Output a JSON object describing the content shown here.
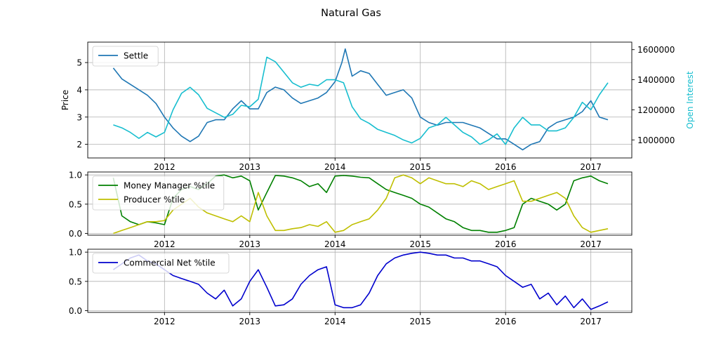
{
  "figure": {
    "title": "Natural Gas"
  },
  "chart_data": [
    {
      "type": "line",
      "panel": "top",
      "ylabel": "Price",
      "y2label": "Open Interest",
      "ylim": [
        1.5,
        5.75
      ],
      "y2lim": [
        880000,
        1650000
      ],
      "xlim": [
        2011.1,
        2017.48
      ],
      "yticks": [
        "2",
        "3",
        "4",
        "5"
      ],
      "y2ticks": [
        "1000000",
        "1200000",
        "1400000",
        "1600000"
      ],
      "xticks": [
        "2012",
        "2013",
        "2014",
        "2015",
        "2016",
        "2017"
      ],
      "grid": true,
      "legend_position": "upper-left",
      "series": [
        {
          "name": "Settle",
          "axis": "left",
          "color": "#1f77b4",
          "x": [
            2011.4,
            2011.5,
            2011.6,
            2011.7,
            2011.8,
            2011.9,
            2012.0,
            2012.1,
            2012.2,
            2012.3,
            2012.4,
            2012.5,
            2012.6,
            2012.7,
            2012.8,
            2012.9,
            2013.0,
            2013.1,
            2013.2,
            2013.3,
            2013.4,
            2013.5,
            2013.6,
            2013.7,
            2013.8,
            2013.9,
            2014.0,
            2014.08,
            2014.12,
            2014.2,
            2014.3,
            2014.4,
            2014.5,
            2014.6,
            2014.7,
            2014.8,
            2014.9,
            2015.0,
            2015.1,
            2015.2,
            2015.3,
            2015.4,
            2015.5,
            2015.6,
            2015.7,
            2015.8,
            2015.9,
            2016.0,
            2016.1,
            2016.2,
            2016.3,
            2016.4,
            2016.5,
            2016.6,
            2016.7,
            2016.8,
            2016.9,
            2017.0,
            2017.1,
            2017.2
          ],
          "values": [
            4.8,
            4.4,
            4.2,
            4.0,
            3.8,
            3.5,
            3.0,
            2.6,
            2.3,
            2.1,
            2.3,
            2.8,
            2.9,
            2.9,
            3.3,
            3.6,
            3.3,
            3.3,
            3.9,
            4.1,
            4.0,
            3.7,
            3.5,
            3.6,
            3.7,
            3.9,
            4.3,
            5.0,
            5.5,
            4.5,
            4.7,
            4.6,
            4.2,
            3.8,
            3.9,
            4.0,
            3.7,
            3.0,
            2.8,
            2.7,
            2.8,
            2.8,
            2.8,
            2.7,
            2.6,
            2.4,
            2.2,
            2.2,
            2.0,
            1.8,
            2.0,
            2.1,
            2.6,
            2.8,
            2.9,
            3.0,
            3.2,
            3.6,
            3.0,
            2.9
          ]
        },
        {
          "name": "Open Interest",
          "axis": "right",
          "color": "#17becf",
          "x": [
            2011.4,
            2011.5,
            2011.6,
            2011.7,
            2011.8,
            2011.9,
            2012.0,
            2012.1,
            2012.2,
            2012.3,
            2012.4,
            2012.5,
            2012.6,
            2012.7,
            2012.8,
            2012.9,
            2013.0,
            2013.1,
            2013.2,
            2013.3,
            2013.4,
            2013.5,
            2013.6,
            2013.7,
            2013.8,
            2013.9,
            2014.0,
            2014.1,
            2014.2,
            2014.3,
            2014.4,
            2014.5,
            2014.6,
            2014.7,
            2014.8,
            2014.9,
            2015.0,
            2015.1,
            2015.2,
            2015.3,
            2015.4,
            2015.5,
            2015.6,
            2015.7,
            2015.8,
            2015.9,
            2016.0,
            2016.1,
            2016.2,
            2016.3,
            2016.4,
            2016.5,
            2016.6,
            2016.7,
            2016.8,
            2016.9,
            2017.0,
            2017.1,
            2017.2
          ],
          "values": [
            1100000,
            1080000,
            1050000,
            1010000,
            1050000,
            1020000,
            1050000,
            1200000,
            1310000,
            1350000,
            1300000,
            1210000,
            1180000,
            1150000,
            1170000,
            1230000,
            1220000,
            1270000,
            1550000,
            1520000,
            1450000,
            1380000,
            1350000,
            1370000,
            1360000,
            1400000,
            1400000,
            1380000,
            1220000,
            1140000,
            1110000,
            1070000,
            1050000,
            1030000,
            1000000,
            980000,
            1010000,
            1080000,
            1100000,
            1150000,
            1100000,
            1050000,
            1020000,
            970000,
            1000000,
            1040000,
            970000,
            1080000,
            1150000,
            1100000,
            1100000,
            1060000,
            1060000,
            1080000,
            1150000,
            1250000,
            1200000,
            1300000,
            1380000
          ]
        }
      ]
    },
    {
      "type": "line",
      "panel": "middle",
      "ylim": [
        -0.03,
        1.05
      ],
      "xlim": [
        2011.1,
        2017.48
      ],
      "yticks": [
        "0.0",
        "0.5",
        "1.0"
      ],
      "xticks": [
        "2012",
        "2013",
        "2014",
        "2015",
        "2016",
        "2017"
      ],
      "grid": true,
      "legend_position": "upper-left",
      "series": [
        {
          "name": "Money Manager %tile",
          "color": "#008000",
          "x": [
            2011.4,
            2011.5,
            2011.6,
            2011.7,
            2011.8,
            2011.9,
            2012.0,
            2012.1,
            2012.2,
            2012.3,
            2012.4,
            2012.5,
            2012.6,
            2012.7,
            2012.8,
            2012.9,
            2013.0,
            2013.1,
            2013.2,
            2013.3,
            2013.4,
            2013.5,
            2013.6,
            2013.7,
            2013.8,
            2013.9,
            2014.0,
            2014.1,
            2014.2,
            2014.3,
            2014.4,
            2014.5,
            2014.6,
            2014.7,
            2014.8,
            2014.9,
            2015.0,
            2015.1,
            2015.2,
            2015.3,
            2015.4,
            2015.5,
            2015.6,
            2015.7,
            2015.8,
            2015.9,
            2016.0,
            2016.1,
            2016.2,
            2016.3,
            2016.4,
            2016.5,
            2016.6,
            2016.7,
            2016.8,
            2016.9,
            2017.0,
            2017.1,
            2017.2
          ],
          "values": [
            0.95,
            0.3,
            0.2,
            0.15,
            0.2,
            0.18,
            0.15,
            0.6,
            0.75,
            0.8,
            0.75,
            0.85,
            0.98,
            1.0,
            0.95,
            0.98,
            0.9,
            0.4,
            0.7,
            0.99,
            0.98,
            0.95,
            0.9,
            0.8,
            0.85,
            0.7,
            0.98,
            0.99,
            0.98,
            0.96,
            0.95,
            0.85,
            0.75,
            0.7,
            0.65,
            0.6,
            0.5,
            0.45,
            0.35,
            0.25,
            0.2,
            0.1,
            0.05,
            0.05,
            0.02,
            0.02,
            0.05,
            0.1,
            0.5,
            0.6,
            0.55,
            0.5,
            0.4,
            0.5,
            0.9,
            0.95,
            0.98,
            0.9,
            0.85
          ]
        },
        {
          "name": "Producer %tile",
          "color": "#bfbf00",
          "x": [
            2011.4,
            2011.5,
            2011.6,
            2011.7,
            2011.8,
            2011.9,
            2012.0,
            2012.1,
            2012.2,
            2012.3,
            2012.4,
            2012.5,
            2012.6,
            2012.7,
            2012.8,
            2012.9,
            2013.0,
            2013.1,
            2013.2,
            2013.3,
            2013.4,
            2013.5,
            2013.6,
            2013.7,
            2013.8,
            2013.9,
            2014.0,
            2014.1,
            2014.2,
            2014.3,
            2014.4,
            2014.5,
            2014.6,
            2014.7,
            2014.8,
            2014.9,
            2015.0,
            2015.1,
            2015.2,
            2015.3,
            2015.4,
            2015.5,
            2015.6,
            2015.7,
            2015.8,
            2015.9,
            2016.0,
            2016.1,
            2016.2,
            2016.3,
            2016.4,
            2016.5,
            2016.6,
            2016.7,
            2016.8,
            2016.9,
            2017.0,
            2017.1,
            2017.2
          ],
          "values": [
            0.0,
            0.05,
            0.1,
            0.15,
            0.2,
            0.2,
            0.22,
            0.4,
            0.5,
            0.6,
            0.45,
            0.35,
            0.3,
            0.25,
            0.2,
            0.3,
            0.2,
            0.7,
            0.3,
            0.05,
            0.05,
            0.08,
            0.1,
            0.15,
            0.12,
            0.2,
            0.02,
            0.05,
            0.15,
            0.2,
            0.25,
            0.4,
            0.6,
            0.95,
            1.0,
            0.95,
            0.85,
            0.95,
            0.9,
            0.85,
            0.85,
            0.8,
            0.9,
            0.85,
            0.75,
            0.8,
            0.85,
            0.9,
            0.55,
            0.55,
            0.6,
            0.65,
            0.7,
            0.6,
            0.3,
            0.1,
            0.02,
            0.05,
            0.08
          ]
        }
      ]
    },
    {
      "type": "line",
      "panel": "bottom",
      "ylim": [
        -0.03,
        1.05
      ],
      "xlim": [
        2011.1,
        2017.48
      ],
      "yticks": [
        "0.0",
        "0.5",
        "1.0"
      ],
      "xticks": [
        "2012",
        "2013",
        "2014",
        "2015",
        "2016",
        "2017"
      ],
      "grid": true,
      "legend_position": "upper-left",
      "series": [
        {
          "name": "Commercial Net %tile",
          "color": "#0000cd",
          "x": [
            2011.4,
            2011.5,
            2011.6,
            2011.7,
            2011.8,
            2011.9,
            2012.0,
            2012.1,
            2012.2,
            2012.3,
            2012.4,
            2012.5,
            2012.6,
            2012.7,
            2012.8,
            2012.9,
            2013.0,
            2013.1,
            2013.2,
            2013.3,
            2013.4,
            2013.5,
            2013.6,
            2013.7,
            2013.8,
            2013.9,
            2014.0,
            2014.1,
            2014.2,
            2014.3,
            2014.4,
            2014.5,
            2014.6,
            2014.7,
            2014.8,
            2014.9,
            2015.0,
            2015.1,
            2015.2,
            2015.3,
            2015.4,
            2015.5,
            2015.6,
            2015.7,
            2015.8,
            2015.9,
            2016.0,
            2016.1,
            2016.2,
            2016.3,
            2016.4,
            2016.5,
            2016.6,
            2016.7,
            2016.8,
            2016.9,
            2017.0,
            2017.1,
            2017.2
          ],
          "values": [
            0.7,
            0.8,
            0.9,
            0.95,
            0.85,
            0.8,
            0.7,
            0.6,
            0.55,
            0.5,
            0.45,
            0.3,
            0.2,
            0.35,
            0.08,
            0.2,
            0.5,
            0.7,
            0.4,
            0.08,
            0.1,
            0.2,
            0.45,
            0.6,
            0.7,
            0.75,
            0.1,
            0.05,
            0.05,
            0.1,
            0.3,
            0.6,
            0.8,
            0.9,
            0.95,
            0.98,
            1.0,
            0.98,
            0.95,
            0.95,
            0.9,
            0.9,
            0.85,
            0.85,
            0.8,
            0.75,
            0.6,
            0.5,
            0.4,
            0.45,
            0.2,
            0.3,
            0.1,
            0.25,
            0.05,
            0.2,
            0.02,
            0.08,
            0.15
          ]
        }
      ]
    }
  ]
}
